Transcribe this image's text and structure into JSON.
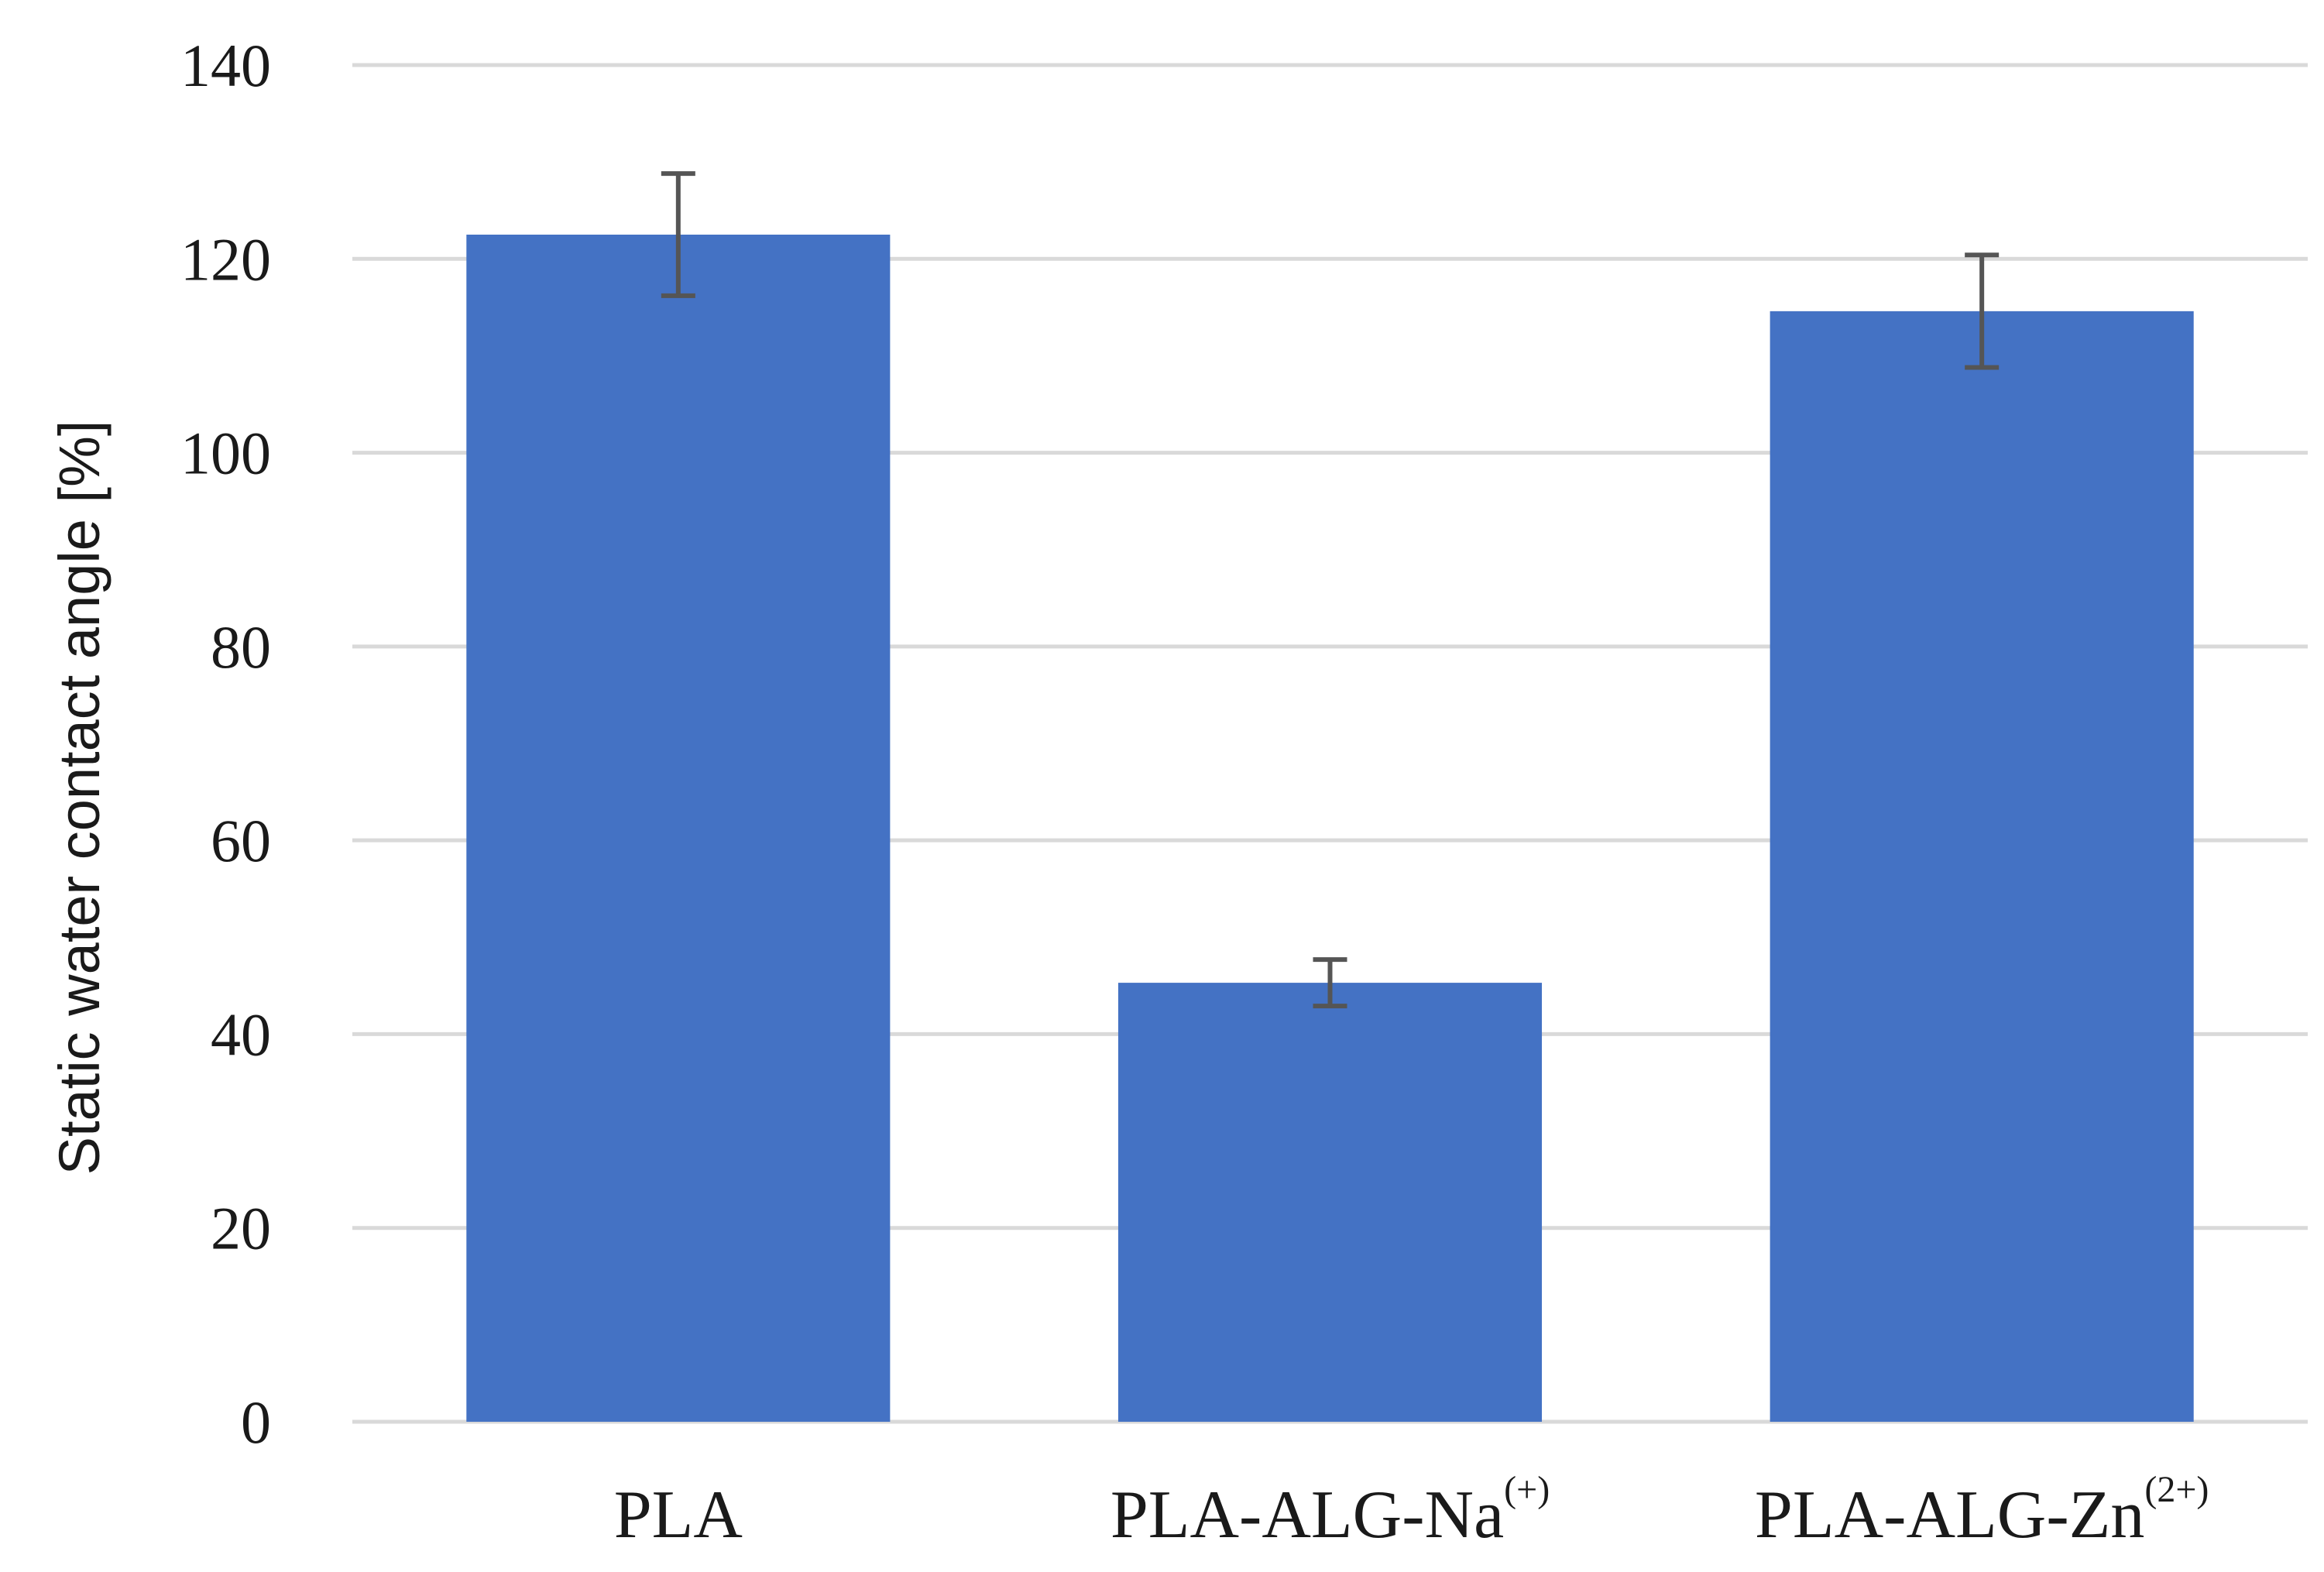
{
  "chart_data": {
    "type": "bar",
    "categories": [
      {
        "base": "PLA",
        "sup": ""
      },
      {
        "base": "PLA-ALG-Na",
        "sup": "(+)"
      },
      {
        "base": "PLA-ALG-Zn",
        "sup": "(2+)"
      }
    ],
    "values": [
      122.5,
      45.3,
      114.6
    ],
    "error": [
      6.3,
      2.4,
      5.8
    ],
    "title": "",
    "xlabel": "",
    "ylabel": "Static water contact angle [%]",
    "ylim": [
      0,
      140
    ],
    "yticks": [
      0,
      20,
      40,
      60,
      80,
      100,
      120,
      140
    ],
    "grid": true,
    "colors": {
      "bar": "#4472C4",
      "error_bar": "#555555",
      "grid": "#d9d9d9",
      "axis": "#d9d9d9"
    }
  }
}
